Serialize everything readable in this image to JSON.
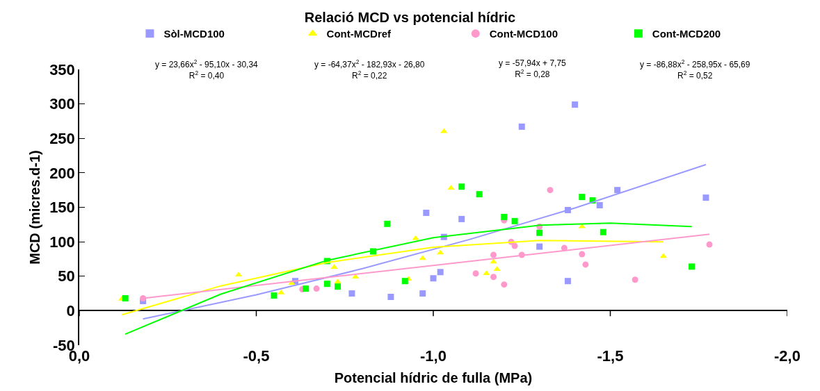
{
  "chart_data": {
    "type": "scatter",
    "title": "Relació MCD vs potencial hídric",
    "xlabel": "Potencial hídric de fulla (MPa)",
    "ylabel": "MCD (micres.d-1)",
    "xlim": [
      0,
      -2.0
    ],
    "xticks": [
      {
        "value": 0,
        "label": "0,0"
      },
      {
        "value": -0.5,
        "label": "-0,5"
      },
      {
        "value": -1.0,
        "label": "-1,0"
      },
      {
        "value": -1.5,
        "label": "-1,5"
      },
      {
        "value": -2.0,
        "label": "-2,0"
      }
    ],
    "ylim": [
      -50,
      350
    ],
    "yticks": [
      -50,
      0,
      50,
      100,
      150,
      200,
      250,
      300,
      350
    ],
    "grid": false,
    "legend": "top",
    "annotations": [
      "y = 23,66x$^{2}$ - 95,10x - 30,34\nR$^{2}$ = 0,40",
      "y = -64,37x$^{2}$ - 182,93x - 26,80\nR$^{2}$ = 0,22",
      "y = -57,94x + 7,75\nR$^{2}$ = 0,28",
      "y = -86,88x$^{2}$ - 258,95x - 65,69\nR$^{2}$ = 0,52"
    ],
    "series": [
      {
        "name": "Sòl-MCD100",
        "type": "scatter",
        "marker": "square",
        "color": "#9999ff",
        "x": [
          -0.18,
          -0.61,
          -0.77,
          -0.88,
          -0.97,
          -1.0,
          -1.02,
          -0.98,
          -1.03,
          -1.08,
          -1.25,
          -1.3,
          -1.38,
          -1.38,
          -1.4,
          -1.47,
          -1.52,
          -1.77
        ],
        "values": [
          14,
          43,
          25,
          20,
          25,
          47,
          56,
          142,
          107,
          133,
          267,
          93,
          146,
          43,
          299,
          153,
          175,
          164
        ]
      },
      {
        "name": "Cont-MCDref",
        "type": "scatter",
        "marker": "triangle",
        "color": "#ffff00",
        "x": [
          -0.12,
          -0.45,
          -0.57,
          -0.6,
          -0.72,
          -0.73,
          -0.78,
          -0.93,
          -0.95,
          -0.97,
          -1.02,
          -1.03,
          -1.05,
          -1.15,
          -1.17,
          -1.18,
          -1.42,
          -1.65
        ],
        "values": [
          17,
          52,
          26,
          40,
          63,
          42,
          49,
          46,
          105,
          76,
          84,
          260,
          178,
          54,
          71,
          60,
          122,
          79
        ]
      },
      {
        "name": "Cont-MCD100",
        "type": "scatter",
        "marker": "circle",
        "color": "#ff99cc",
        "x": [
          -0.18,
          -0.63,
          -0.67,
          -1.12,
          -1.17,
          -1.17,
          -1.2,
          -1.2,
          -1.22,
          -1.23,
          -1.25,
          -1.3,
          -1.33,
          -1.37,
          -1.42,
          -1.43,
          -1.57,
          -1.78
        ],
        "values": [
          18,
          31,
          32,
          54,
          81,
          49,
          38,
          131,
          100,
          94,
          81,
          122,
          175,
          91,
          82,
          67,
          45,
          96
        ]
      },
      {
        "name": "Cont-MCD200",
        "type": "scatter",
        "marker": "square",
        "color": "#00ff00",
        "x": [
          -0.13,
          -0.55,
          -0.64,
          -0.7,
          -0.7,
          -0.73,
          -0.83,
          -0.87,
          -0.92,
          -1.08,
          -1.13,
          -1.2,
          -1.23,
          -1.3,
          -1.42,
          -1.45,
          -1.48,
          -1.73
        ],
        "values": [
          18,
          22,
          32,
          39,
          72,
          35,
          86,
          126,
          43,
          180,
          169,
          136,
          130,
          113,
          165,
          160,
          114,
          64
        ]
      },
      {
        "type": "line",
        "marker": "none",
        "line_style": "solid",
        "color": "#9999ff",
        "x": [
          -0.18,
          -0.5,
          -0.8,
          -1.1,
          -1.4,
          -1.77
        ],
        "values": [
          -12,
          23,
          61,
          103,
          149,
          212
        ]
      },
      {
        "type": "line",
        "marker": "none",
        "line_style": "solid",
        "color": "#ffff00",
        "x": [
          -0.12,
          -0.4,
          -0.7,
          -1.0,
          -1.3,
          -1.65
        ],
        "values": [
          -6,
          36,
          70,
          92,
          102,
          100
        ]
      },
      {
        "type": "line",
        "marker": "none",
        "line_style": "solid",
        "color": "#ff99cc",
        "x": [
          -0.18,
          -1.78
        ],
        "values": [
          18,
          111
        ]
      },
      {
        "type": "line",
        "marker": "none",
        "line_style": "solid",
        "color": "#00ff00",
        "x": [
          -0.13,
          -0.4,
          -0.7,
          -1.0,
          -1.3,
          -1.5,
          -1.73
        ],
        "values": [
          -34,
          24,
          73,
          106,
          124,
          127,
          122
        ]
      }
    ]
  }
}
